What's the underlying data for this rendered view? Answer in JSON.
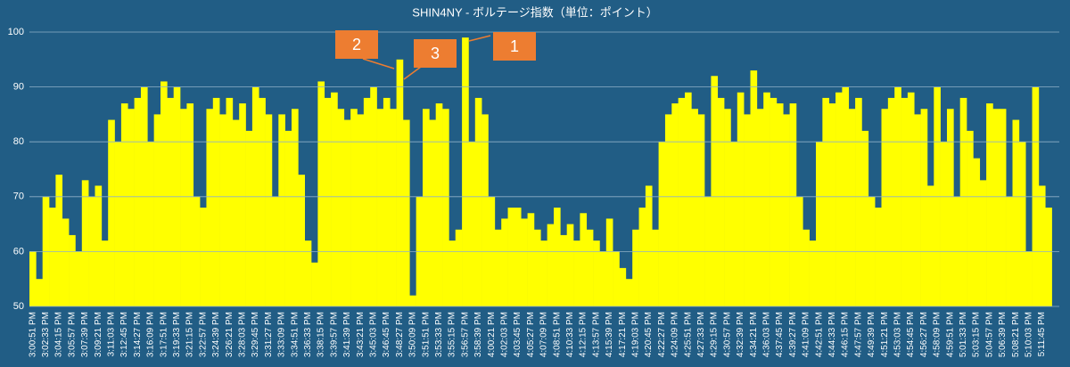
{
  "chart_data": {
    "type": "bar",
    "title": "SHIN4NY - ボルテージ指数（単位：ポイント）",
    "categories": [
      "3:00:51 PM",
      null,
      "3:02:33 PM",
      null,
      "3:04:15 PM",
      null,
      "3:05:57 PM",
      null,
      "3:07:39 PM",
      null,
      "3:09:21 PM",
      null,
      "3:11:03 PM",
      null,
      "3:12:45 PM",
      null,
      "3:14:27 PM",
      null,
      "3:16:09 PM",
      null,
      "3:17:51 PM",
      null,
      "3:19:33 PM",
      null,
      "3:21:15 PM",
      null,
      "3:22:57 PM",
      null,
      "3:24:39 PM",
      null,
      "3:26:21 PM",
      null,
      "3:28:03 PM",
      null,
      "3:29:45 PM",
      null,
      "3:31:27 PM",
      null,
      "3:33:09 PM",
      null,
      "3:34:51 PM",
      null,
      "3:36:33 PM",
      null,
      "3:38:15 PM",
      null,
      "3:39:57 PM",
      null,
      "3:41:39 PM",
      null,
      "3:43:21 PM",
      null,
      "3:45:03 PM",
      null,
      "3:46:45 PM",
      null,
      "3:48:27 PM",
      null,
      "3:50:09 PM",
      null,
      "3:51:51 PM",
      null,
      "3:53:33 PM",
      null,
      "3:55:15 PM",
      null,
      "3:56:57 PM",
      null,
      "3:58:39 PM",
      null,
      "4:00:21 PM",
      null,
      "4:02:03 PM",
      null,
      "4:03:45 PM",
      null,
      "4:05:27 PM",
      null,
      "4:07:09 PM",
      null,
      "4:08:51 PM",
      null,
      "4:10:33 PM",
      null,
      "4:12:15 PM",
      null,
      "4:13:57 PM",
      null,
      "4:15:39 PM",
      null,
      "4:17:21 PM",
      null,
      "4:19:03 PM",
      null,
      "4:20:45 PM",
      null,
      "4:22:27 PM",
      null,
      "4:24:09 PM",
      null,
      "4:25:51 PM",
      null,
      "4:27:33 PM",
      null,
      "4:29:15 PM",
      null,
      "4:30:57 PM",
      null,
      "4:32:39 PM",
      null,
      "4:34:21 PM",
      null,
      "4:36:03 PM",
      null,
      "4:37:45 PM",
      null,
      "4:39:27 PM",
      null,
      "4:41:09 PM",
      null,
      "4:42:51 PM",
      null,
      "4:44:33 PM",
      null,
      "4:46:15 PM",
      null,
      "4:47:57 PM",
      null,
      "4:49:39 PM",
      null,
      "4:51:21 PM",
      null,
      "4:53:03 PM",
      null,
      "4:54:45 PM",
      null,
      "4:56:27 PM",
      null,
      "4:58:09 PM",
      null,
      "4:59:51 PM",
      null,
      "5:01:33 PM",
      null,
      "5:03:15 PM",
      null,
      "5:04:57 PM",
      null,
      "5:06:39 PM",
      null,
      "5:08:21 PM",
      null,
      "5:10:03 PM",
      null,
      "5:11:45 PM",
      null
    ],
    "values": [
      60,
      55,
      70,
      68,
      74,
      66,
      63,
      60,
      73,
      70,
      72,
      62,
      84,
      80,
      87,
      86,
      88,
      90,
      80,
      85,
      91,
      88,
      90,
      86,
      87,
      70,
      68,
      86,
      88,
      85,
      88,
      84,
      87,
      82,
      90,
      88,
      85,
      70,
      85,
      82,
      86,
      74,
      62,
      58,
      91,
      88,
      89,
      86,
      84,
      86,
      85,
      88,
      90,
      86,
      88,
      86,
      95,
      84,
      52,
      70,
      86,
      84,
      87,
      86,
      62,
      64,
      99,
      80,
      88,
      85,
      70,
      64,
      66,
      68,
      68,
      66,
      67,
      64,
      62,
      65,
      68,
      63,
      65,
      62,
      67,
      64,
      62,
      60,
      66,
      60,
      57,
      55,
      64,
      68,
      72,
      64,
      80,
      85,
      87,
      88,
      89,
      86,
      85,
      70,
      92,
      88,
      86,
      80,
      89,
      85,
      93,
      86,
      89,
      88,
      87,
      85,
      87,
      70,
      64,
      62,
      80,
      88,
      87,
      89,
      90,
      86,
      88,
      82,
      70,
      68,
      86,
      88,
      90,
      88,
      89,
      85,
      86,
      72,
      90,
      80,
      86,
      70,
      88,
      82,
      77,
      73,
      87,
      86,
      86,
      70,
      84,
      80,
      60,
      90,
      72,
      68
    ],
    "color": "#ffff00",
    "ylim": [
      50,
      100
    ],
    "yticks": [
      50,
      60,
      70,
      80,
      90,
      100
    ],
    "grid": true,
    "annotations": [
      "1",
      "2",
      "3"
    ]
  }
}
